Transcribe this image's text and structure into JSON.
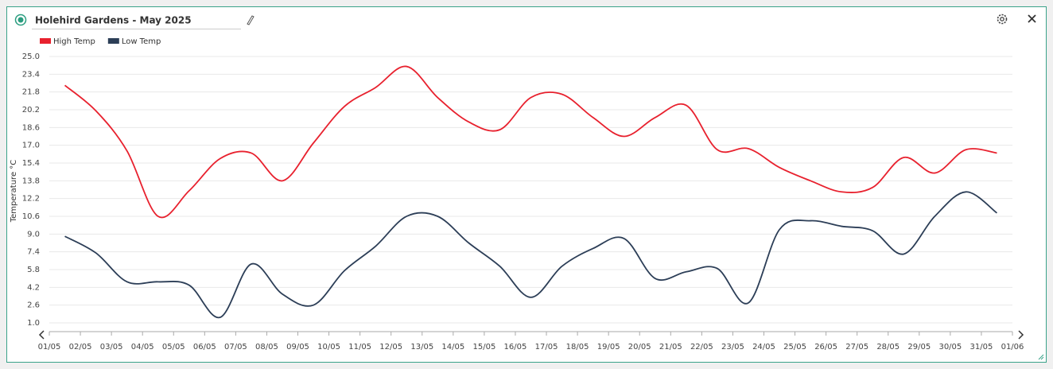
{
  "chart_data": {
    "type": "line",
    "title": "Holehird Gardens - May 2025",
    "ylabel": "Temperature °C",
    "categories": [
      "01/05",
      "02/05",
      "03/05",
      "04/05",
      "05/05",
      "06/05",
      "07/05",
      "08/05",
      "09/05",
      "10/05",
      "11/05",
      "12/05",
      "13/05",
      "14/05",
      "15/05",
      "16/05",
      "17/05",
      "18/05",
      "19/05",
      "20/05",
      "21/05",
      "22/05",
      "23/05",
      "24/05",
      "25/05",
      "26/05",
      "27/05",
      "28/05",
      "29/05",
      "30/05",
      "31/05",
      "01/06"
    ],
    "series": [
      {
        "name": "High Temp",
        "color": "#e8212e",
        "values": [
          22.4,
          20.1,
          16.5,
          10.6,
          12.9,
          15.8,
          16.3,
          13.8,
          17.2,
          20.5,
          22.2,
          24.1,
          21.3,
          19.1,
          18.4,
          21.3,
          21.6,
          19.5,
          17.8,
          19.5,
          20.6,
          16.6,
          16.7,
          15.0,
          13.8,
          12.8,
          13.2,
          15.9,
          14.5,
          16.6,
          16.3,
          null
        ]
      },
      {
        "name": "Low Temp",
        "color": "#2c3e57",
        "values": [
          8.8,
          7.3,
          4.7,
          4.7,
          4.4,
          1.5,
          6.3,
          3.6,
          2.6,
          5.7,
          7.9,
          10.6,
          10.6,
          8.2,
          6.1,
          3.3,
          6.1,
          7.7,
          8.6,
          5.0,
          5.6,
          5.9,
          2.8,
          9.4,
          10.2,
          9.7,
          9.3,
          7.2,
          10.6,
          12.8,
          10.9,
          null
        ]
      }
    ],
    "ylim": [
      1,
      25
    ],
    "yticks": [
      {
        "value": 1,
        "label": "1.0"
      },
      2.6,
      4.2,
      5.8,
      7.4,
      {
        "value": 9,
        "label": "9.0"
      },
      10.6,
      12.2,
      13.8,
      15.4,
      {
        "value": 17,
        "label": "17.0"
      },
      18.6,
      20.2,
      21.8,
      23.4,
      {
        "value": 25,
        "label": "25.0"
      }
    ],
    "grid": true,
    "legend": "top-left"
  }
}
